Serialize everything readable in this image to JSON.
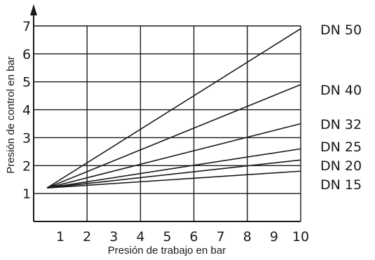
{
  "chart_data": {
    "type": "line",
    "xlabel": "Presión de trabajo en bar",
    "ylabel": "Presión de control en bar",
    "xlim": [
      0,
      10
    ],
    "ylim": [
      0,
      7
    ],
    "x_ticks": [
      "1",
      "2",
      "3",
      "4",
      "5",
      "6",
      "7",
      "8",
      "9",
      "10"
    ],
    "y_ticks": [
      "1",
      "2",
      "3",
      "4",
      "5",
      "6",
      "7"
    ],
    "grid": true,
    "legend_placement": "right, at line ends",
    "series": [
      {
        "name": "DN 50",
        "x": [
          0.5,
          10
        ],
        "y": [
          1.2,
          6.9
        ]
      },
      {
        "name": "DN 40",
        "x": [
          0.5,
          10
        ],
        "y": [
          1.2,
          4.9
        ]
      },
      {
        "name": "DN 32",
        "x": [
          0.5,
          10
        ],
        "y": [
          1.2,
          3.5
        ]
      },
      {
        "name": "DN 25",
        "x": [
          0.5,
          10
        ],
        "y": [
          1.2,
          2.6
        ]
      },
      {
        "name": "DN 20",
        "x": [
          0.5,
          10
        ],
        "y": [
          1.2,
          2.2
        ]
      },
      {
        "name": "DN 15",
        "x": [
          0.5,
          10
        ],
        "y": [
          1.2,
          1.8
        ]
      }
    ],
    "legend_labels": [
      "DN 50",
      "DN 40",
      "DN 32",
      "DN 25",
      "DN 20",
      "DN 15"
    ]
  }
}
